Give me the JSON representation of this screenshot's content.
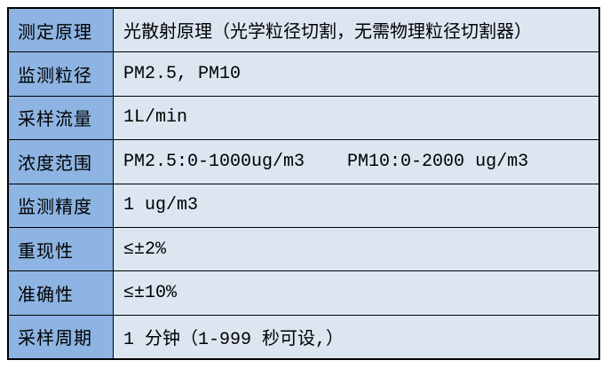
{
  "table": {
    "title": "particle-sensor-specifications",
    "colors": {
      "label_bg": "#8DB4E2",
      "value_bg": "#DCE6F1",
      "border": "#000000",
      "text": "#000000"
    },
    "rows": [
      {
        "label": "测定原理",
        "value": "光散射原理（光学粒径切割，无需物理粒径切割器）"
      },
      {
        "label": "监测粒径",
        "value": "PM2.5, PM10"
      },
      {
        "label": "采样流量",
        "value": "1L/min"
      },
      {
        "label": "浓度范围",
        "value": "PM2.5:0-1000ug/m3    PM10:0-2000 ug/m3"
      },
      {
        "label": "监测精度",
        "value": "1 ug/m3"
      },
      {
        "label": "重现性",
        "value": "≤±2%"
      },
      {
        "label": "准确性",
        "value": "≤±10%"
      },
      {
        "label": "采样周期",
        "value": "1 分钟（1-999 秒可设,）"
      }
    ]
  }
}
